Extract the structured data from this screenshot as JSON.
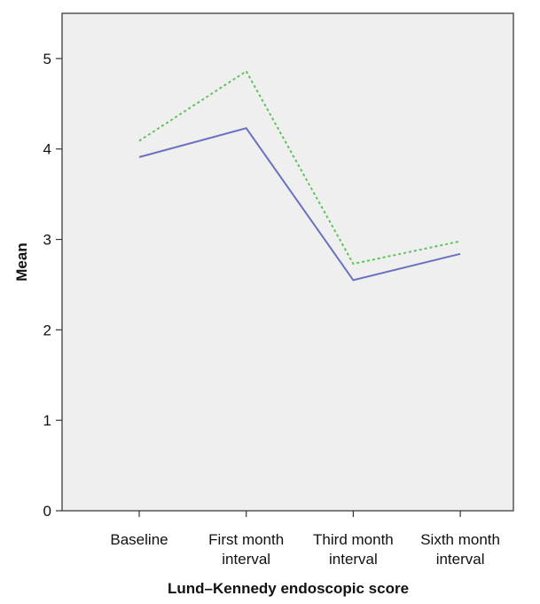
{
  "chart_data": {
    "type": "line",
    "title": "",
    "xlabel": "Lund–Kennedy endoscopic score",
    "ylabel": "Mean",
    "ylim": [
      0,
      5.5
    ],
    "yticks": [
      0,
      1,
      2,
      3,
      4,
      5
    ],
    "categories": [
      [
        "Baseline"
      ],
      [
        "First month",
        "interval"
      ],
      [
        "Third month",
        "interval"
      ],
      [
        "Sixth month",
        "interval"
      ]
    ],
    "series": [
      {
        "values": [
          3.91,
          4.23,
          2.55,
          2.84
        ],
        "color": "#6a72c0",
        "style": "solid"
      },
      {
        "values": [
          4.09,
          4.86,
          2.73,
          2.98
        ],
        "color": "#5fc45a",
        "style": "dotted"
      }
    ],
    "grid": false,
    "legend": "none",
    "plot_background": "#efefef"
  }
}
